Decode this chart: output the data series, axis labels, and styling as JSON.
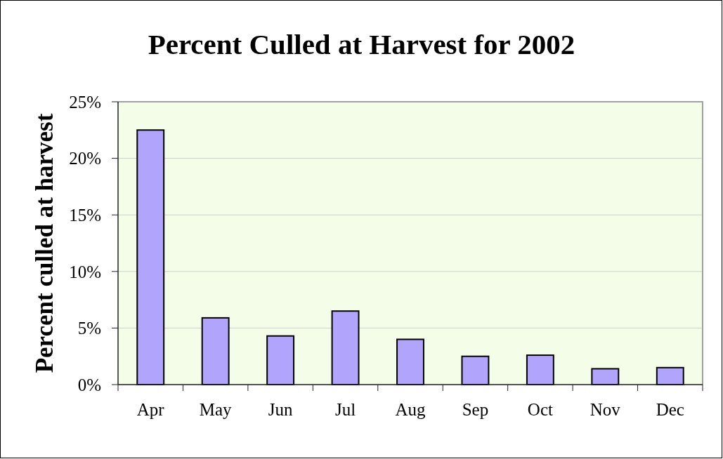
{
  "chart_data": {
    "type": "bar",
    "title": "Percent Culled at Harvest for 2002",
    "ylabel": "Percent culled at harvest",
    "categories": [
      "Apr",
      "May",
      "Jun",
      "Jul",
      "Aug",
      "Sep",
      "Oct",
      "Nov",
      "Dec"
    ],
    "values": [
      22.5,
      5.9,
      4.3,
      6.5,
      4.0,
      2.5,
      2.6,
      1.4,
      1.5
    ],
    "color": "#b0a4fc",
    "ylim": [
      0,
      25
    ],
    "yticks": [
      {
        "value": 0,
        "label": "0%"
      },
      {
        "value": 5,
        "label": "5%"
      },
      {
        "value": 10,
        "label": "10%"
      },
      {
        "value": 15,
        "label": "15%"
      },
      {
        "value": 20,
        "label": "20%"
      },
      {
        "value": 25,
        "label": "25%"
      }
    ],
    "grid": "y"
  }
}
